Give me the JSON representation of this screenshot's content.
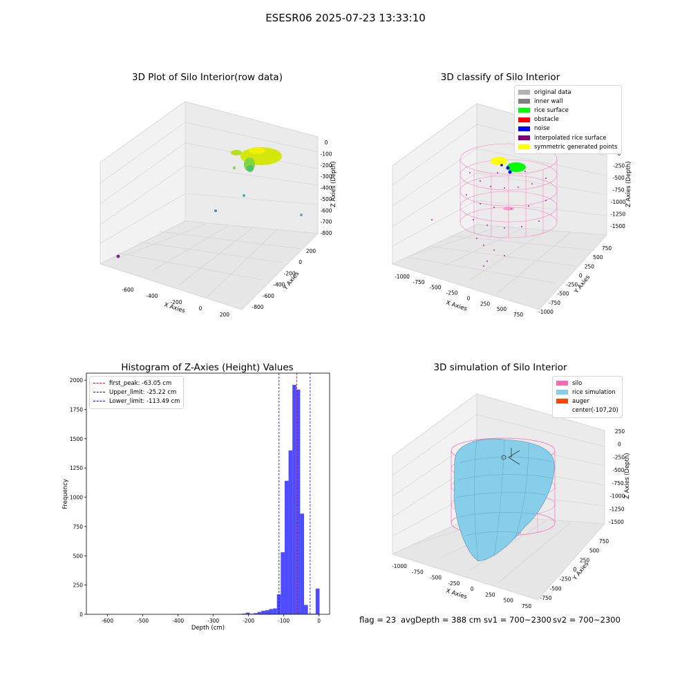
{
  "figure_title": "ESESR06 2025-07-23 13:33:10",
  "footer": {
    "flag": "flag = 23",
    "avg_depth": "avgDepth = 388 cm",
    "sv1": "sv1 = 700~2300",
    "sv2": "sv2 = 700~2300"
  },
  "colors": {
    "original_data": "#b3b3b3",
    "inner_wall": "#808080",
    "rice_surface": "#00ff00",
    "obstacle": "#ff0000",
    "noise": "#0000ff",
    "interpolated_rice_surface": "#800080",
    "symmetric_generated_points": "#ffff00",
    "silo": "#ff69b4",
    "rice_simulation": "#87ceeb",
    "auger": "#ff4500",
    "histogram_bar": "#4d4dff",
    "first_peak_line": "#ff0000",
    "limit_line": "#0000ff"
  },
  "chart_data": [
    {
      "type": "scatter",
      "title": "3D Plot of Silo Interior(row data)",
      "xlabel": "X Axies",
      "ylabel": "Y Axies",
      "zlabel": "Z Axies (Depth)",
      "x_ticks": [
        "-600",
        "-400",
        "-200",
        "0",
        "200"
      ],
      "y_ticks": [
        "-800",
        "-600",
        "-400",
        "-200",
        "0",
        "200"
      ],
      "z_ticks": [
        "0",
        "-100",
        "-200",
        "-300",
        "-400",
        "-500",
        "-600",
        "-700",
        "-800"
      ],
      "notes": "dense yellow-green point cloud near the top; a few scattered outliers"
    },
    {
      "type": "scatter",
      "title": "3D classify of Silo Interior",
      "xlabel": "X Axies",
      "ylabel": "Y Axies",
      "zlabel": "Z Axies (Depth)",
      "x_ticks": [
        "-1000",
        "-750",
        "-500",
        "-250",
        "0",
        "250",
        "500",
        "750"
      ],
      "y_ticks": [
        "-1000",
        "-750",
        "-500",
        "-250",
        "0",
        "250",
        "500",
        "750"
      ],
      "z_ticks": [
        "0",
        "-250",
        "-500",
        "-750",
        "-1000",
        "-1250",
        "-1500"
      ],
      "z_top_partial": "0",
      "legend": [
        "original data",
        "inner wall",
        "rice surface",
        "obstacle",
        "noise",
        "interpolated rice surface",
        "symmetric generated points"
      ]
    },
    {
      "type": "bar",
      "title": "Histogram of Z-Axies (Height) Values",
      "xlabel": "Depth (cm)",
      "ylabel": "Frequency",
      "xlim": [
        -660,
        30
      ],
      "ylim": [
        0,
        2060
      ],
      "x_ticks": [
        "-600",
        "-500",
        "-400",
        "-300",
        "-200",
        "-100",
        "0"
      ],
      "y_ticks": [
        "0",
        "250",
        "500",
        "750",
        "1000",
        "1250",
        "1500",
        "1750",
        "2000"
      ],
      "bin_width": 11,
      "bins": [
        {
          "x": -224,
          "y": 3
        },
        {
          "x": -213,
          "y": 6
        },
        {
          "x": -202,
          "y": 14
        },
        {
          "x": -191,
          "y": 5
        },
        {
          "x": -180,
          "y": 10
        },
        {
          "x": -169,
          "y": 20
        },
        {
          "x": -158,
          "y": 30
        },
        {
          "x": -147,
          "y": 35
        },
        {
          "x": -136,
          "y": 45
        },
        {
          "x": -125,
          "y": 50
        },
        {
          "x": -114,
          "y": 170
        },
        {
          "x": -103,
          "y": 530
        },
        {
          "x": -92,
          "y": 1140
        },
        {
          "x": -81,
          "y": 1400
        },
        {
          "x": -70,
          "y": 1960
        },
        {
          "x": -59,
          "y": 1920
        },
        {
          "x": -48,
          "y": 860
        },
        {
          "x": -37,
          "y": 80
        },
        {
          "x": -26,
          "y": 5
        },
        {
          "x": -15,
          "y": 5
        },
        {
          "x": -4,
          "y": 220
        }
      ],
      "vlines": [
        {
          "label": "first_peak: -63.05 cm",
          "x": -63.05,
          "color": "#ff0000"
        },
        {
          "label": "Upper_limit: -25.22 cm",
          "x": -25.22,
          "color": "#0000ff"
        },
        {
          "label": "Lower_limit: -113.49 cm",
          "x": -113.49,
          "color": "#0000ff"
        }
      ]
    },
    {
      "type": "area",
      "title": "3D simulation of Silo Interior",
      "xlabel": "X Axies",
      "ylabel": "Y Axies",
      "zlabel": "Z Axies (Depth)",
      "x_ticks": [
        "-1000",
        "-750",
        "-500",
        "-250",
        "0",
        "250",
        "500",
        "750"
      ],
      "y_ticks": [
        "-750",
        "-500",
        "-250",
        "0",
        "250",
        "500",
        "750"
      ],
      "z_ticks": [
        "250",
        "0",
        "-250",
        "-500",
        "-750",
        "-1000",
        "-1250",
        "-1500"
      ],
      "legend": [
        "silo",
        "rice simulation",
        "auger",
        "center(-107,20)"
      ]
    }
  ]
}
